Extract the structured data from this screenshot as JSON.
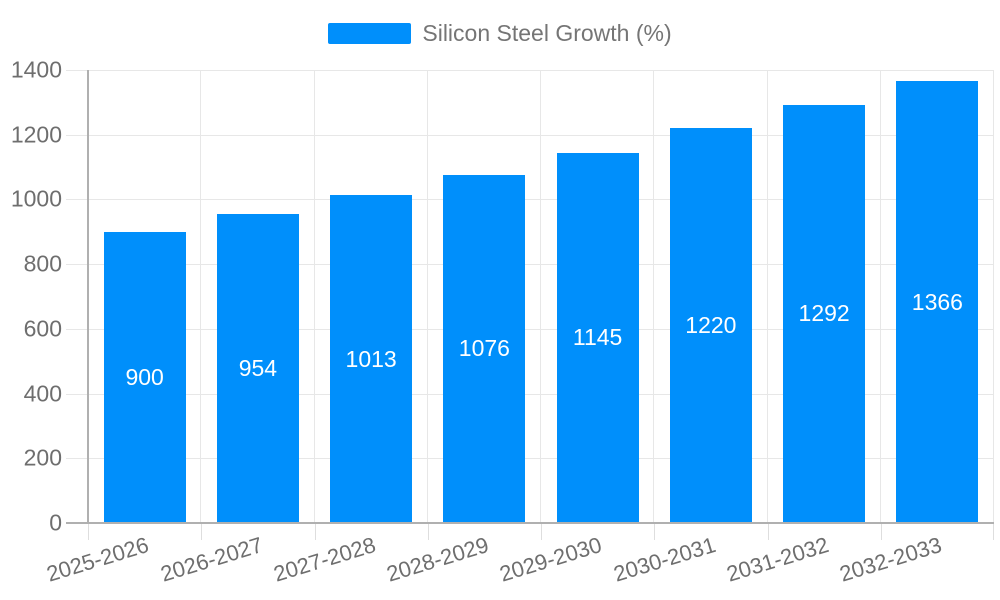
{
  "legend": {
    "label": "Silicon Steel Growth (%)",
    "swatch_color": "#008FFB"
  },
  "chart_data": {
    "type": "bar",
    "title": "Silicon Steel Growth (%)",
    "categories": [
      "2025-2026",
      "2026-2027",
      "2027-2028",
      "2028-2029",
      "2029-2030",
      "2030-2031",
      "2031-2032",
      "2032-2033"
    ],
    "values": [
      900,
      954,
      1013,
      1076,
      1145,
      1220,
      1292,
      1366
    ],
    "bar_value_labels": [
      "900",
      "954",
      "1013",
      "1076",
      "1145",
      "1220",
      "1292",
      "1366"
    ],
    "xlabel": "",
    "ylabel": "",
    "ylim": [
      0,
      1400
    ],
    "ytick_step": 200,
    "ytick_labels": [
      "0",
      "200",
      "400",
      "600",
      "800",
      "1000",
      "1200",
      "1400"
    ],
    "grid": true,
    "legend_position": "top",
    "x_label_rotation_deg": -17
  },
  "colors": {
    "bar": "#008FFB",
    "bar_label_text": "#ffffff",
    "gridline": "#e7e7e7",
    "axis_line": "#b0b0b0",
    "axis_tick": "#dedede",
    "axis_label_text": "#6e6e6e",
    "legend_text": "#757575",
    "background": "#ffffff"
  }
}
